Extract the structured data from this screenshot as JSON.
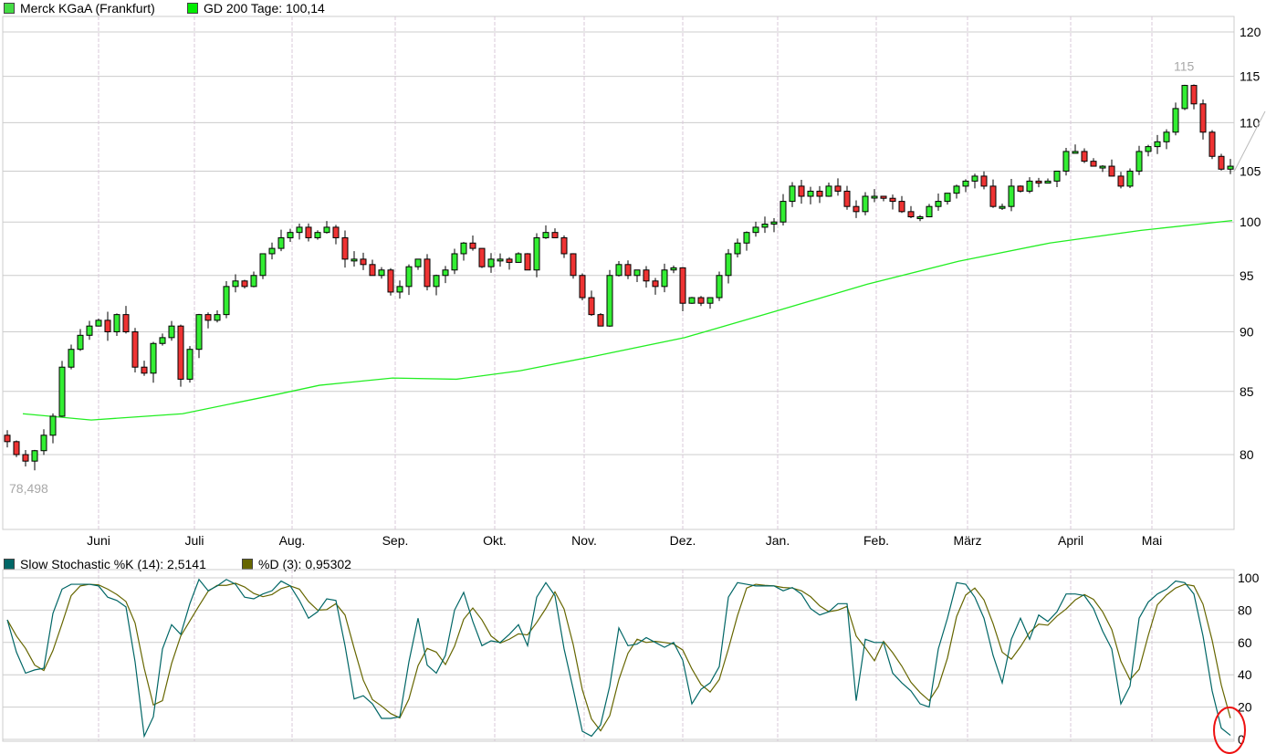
{
  "legend_main": [
    {
      "label": "Merck KGaA (Frankfurt)",
      "color": "#44dd44"
    },
    {
      "label": "GD 200 Tage: 100,14",
      "color": "#00ee00"
    }
  ],
  "legend_stoch": [
    {
      "label": "Slow Stochastic %K (14): 2,5141",
      "color": "#006666"
    },
    {
      "label": "%D (3): 0,95302",
      "color": "#666600"
    }
  ],
  "chart_data": [
    {
      "type": "candlestick",
      "title": "Merck KGaA (Frankfurt)",
      "scale": "log",
      "ylim": [
        75,
        121
      ],
      "yticks": [
        "120",
        "115",
        "110",
        "105",
        "100",
        "95",
        "90",
        "85",
        "80"
      ],
      "ytick_values": [
        120,
        115,
        110,
        105,
        100,
        95,
        90,
        85,
        80
      ],
      "months": [
        {
          "label": "Juni",
          "idx": 10
        },
        {
          "label": "Juli",
          "idx": 20.5
        },
        {
          "label": "Aug.",
          "idx": 31.2
        },
        {
          "label": "Sep.",
          "idx": 42.5
        },
        {
          "label": "Okt.",
          "idx": 53.4
        },
        {
          "label": "Nov.",
          "idx": 63.2
        },
        {
          "label": "Dez.",
          "idx": 74
        },
        {
          "label": "Jan.",
          "idx": 84.4
        },
        {
          "label": "Feb.",
          "idx": 95.2
        },
        {
          "label": "März",
          "idx": 105.2
        },
        {
          "label": "April",
          "idx": 116.5
        },
        {
          "label": "Mai",
          "idx": 125.4
        }
      ],
      "first_open": 81.5,
      "closes": [
        81,
        80,
        79.5,
        80.3,
        81.5,
        83,
        87,
        88.5,
        89.7,
        90.5,
        91,
        90,
        91.5,
        90,
        87,
        86.5,
        89,
        89.5,
        90.5,
        86,
        88.5,
        91.5,
        91,
        91.5,
        94,
        94.5,
        94,
        95,
        97,
        97.5,
        98.5,
        99,
        99.5,
        98.5,
        99,
        99.5,
        98.5,
        96.5,
        96.5,
        96,
        95,
        95.5,
        93.5,
        94,
        95.8,
        96.5,
        94,
        95,
        95.5,
        97,
        98,
        97.5,
        95.8,
        96.5,
        96.5,
        96.2,
        97,
        95.5,
        98.5,
        99,
        98.5,
        97,
        95,
        93,
        91.5,
        90.5,
        95,
        96,
        95,
        95.5,
        94.5,
        94,
        95.5,
        95.7,
        92.5,
        93,
        92.5,
        93,
        95,
        97,
        98,
        99,
        99.5,
        99.8,
        100,
        102,
        103.5,
        102.5,
        103,
        102.5,
        103.5,
        103,
        101.5,
        101,
        102.5,
        102.5,
        102.3,
        102,
        101,
        100.5,
        100.5,
        101.5,
        102,
        102.8,
        103.5,
        104,
        104.5,
        103.5,
        101.5,
        101.5,
        103.5,
        103,
        104,
        103.8,
        104,
        105,
        107,
        107,
        106,
        105.5,
        105.5,
        104.5,
        103.5,
        105,
        107,
        107.5,
        108,
        109,
        111.5,
        114,
        112,
        109,
        106.5,
        105.2,
        105.5
      ],
      "gd200": {
        "name": "GD 200 Tage",
        "points": [
          [
            1.7,
            83.2
          ],
          [
            9.2,
            82.7
          ],
          [
            19.2,
            83.2
          ],
          [
            29.2,
            84.7
          ],
          [
            34.2,
            85.5
          ],
          [
            42.2,
            86.1
          ],
          [
            49.2,
            86
          ],
          [
            56.2,
            86.7
          ],
          [
            64.2,
            87.9
          ],
          [
            74.2,
            89.5
          ],
          [
            84.2,
            91.8
          ],
          [
            94.2,
            94.2
          ],
          [
            104.2,
            96.3
          ],
          [
            114.2,
            98
          ],
          [
            124.2,
            99.2
          ],
          [
            134.2,
            100.14
          ]
        ]
      },
      "annotations": {
        "max_label": "115",
        "max_idx": 129,
        "max_value": 115,
        "min_label": "78,498",
        "min_idx": 2,
        "min_value": 78.498
      }
    },
    {
      "type": "line",
      "title": "Slow Stochastic",
      "ylim": [
        0,
        100
      ],
      "yticks": [
        "100",
        "80",
        "60",
        "40",
        "20",
        "0"
      ],
      "ytick_values": [
        100,
        80,
        60,
        40,
        20,
        0
      ],
      "series_k": {
        "name": "%K (14)",
        "values": [
          74,
          54,
          41,
          43,
          44,
          78,
          93,
          96,
          96,
          96,
          95,
          88,
          86,
          82,
          48,
          2,
          14,
          56,
          71,
          65,
          84,
          99,
          92,
          95,
          99,
          96,
          88,
          87,
          90,
          92,
          98,
          95,
          86,
          75,
          79,
          87,
          86,
          58,
          25,
          27,
          22,
          13,
          13,
          14,
          48,
          75,
          46,
          41,
          52,
          80,
          91,
          73,
          58,
          61,
          60,
          65,
          71,
          58,
          88,
          97,
          89,
          56,
          31,
          5,
          2,
          9,
          33,
          69,
          58,
          59,
          63,
          60,
          57,
          60,
          49,
          22,
          31,
          35,
          45,
          88,
          97,
          96,
          95,
          95,
          95,
          92,
          94,
          90,
          81,
          77,
          79,
          84,
          84,
          24,
          62,
          60,
          60,
          41,
          35,
          30,
          22,
          20,
          56,
          75,
          97,
          96,
          88,
          75,
          52,
          35,
          62,
          75,
          62,
          77,
          73,
          79,
          90,
          90,
          89,
          81,
          67,
          56,
          22,
          33,
          75,
          85,
          90,
          93,
          98,
          97,
          90,
          64,
          30,
          7,
          2.5
        ]
      },
      "series_d_period": 3
    }
  ]
}
